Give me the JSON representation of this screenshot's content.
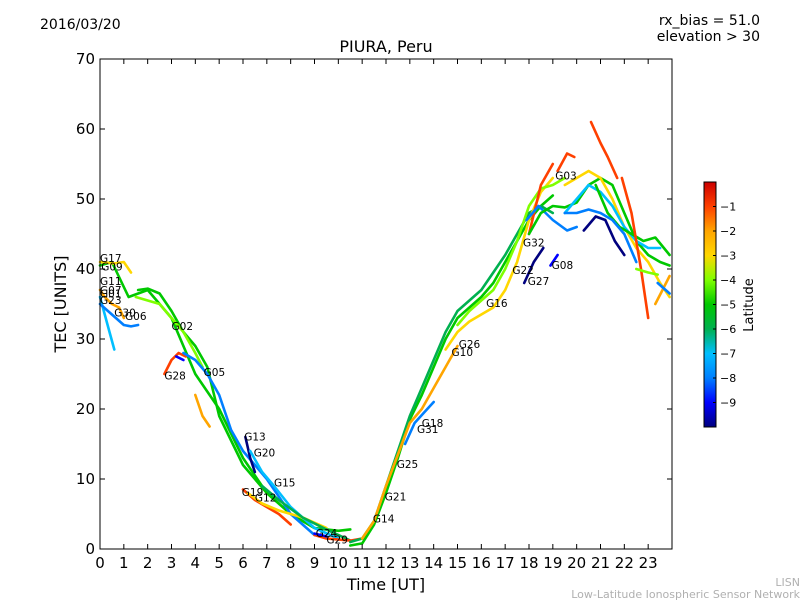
{
  "header": {
    "date": "2016/03/20",
    "title": "PIURA, Peru",
    "rx_bias": "rx_bias = 51.0",
    "elevation": "elevation > 30"
  },
  "footer": {
    "short": "LISN",
    "long": "Low-Latitude Ionospheric Sensor Network"
  },
  "colorbar": {
    "label": "Latitude",
    "ticks": [
      "-1",
      "-2",
      "-3",
      "-4",
      "-5",
      "-6",
      "-7",
      "-8",
      "-9"
    ],
    "range": [
      -10,
      0
    ],
    "colormap": [
      "#00007f",
      "#0000ff",
      "#007fff",
      "#00bfff",
      "#00b050",
      "#00c800",
      "#7fff00",
      "#ffd700",
      "#ffa500",
      "#ff4000",
      "#cc0000"
    ]
  },
  "chart_data": {
    "type": "line",
    "title": "PIURA, Peru",
    "xlabel": "Time [UT]",
    "ylabel": "TEC [UNITS]",
    "xlim": [
      0,
      24
    ],
    "ylim": [
      0,
      70
    ],
    "xticks": [
      "0",
      "1",
      "2",
      "3",
      "4",
      "5",
      "6",
      "7",
      "8",
      "9",
      "10",
      "11",
      "12",
      "13",
      "14",
      "15",
      "16",
      "17",
      "18",
      "19",
      "20",
      "21",
      "22",
      "23"
    ],
    "yticks": [
      "0",
      "10",
      "20",
      "30",
      "40",
      "50",
      "60",
      "70"
    ],
    "series": [
      {
        "lat": -5.5,
        "x": [
          0.0,
          0.5,
          1.2,
          2.0,
          3.0,
          4.0,
          5.0,
          6.0,
          7.0,
          8.0,
          9.0,
          10.0,
          10.5
        ],
        "y": [
          40.5,
          41.0,
          36.0,
          37.0,
          33.0,
          25.0,
          20.0,
          13.0,
          8.0,
          5.0,
          3.0,
          2.6,
          2.8
        ]
      },
      {
        "lat": -3.5,
        "x": [
          0.0,
          0.6,
          1.0,
          1.3
        ],
        "y": [
          41.0,
          40.8,
          41.0,
          39.5
        ]
      },
      {
        "lat": -5.2,
        "x": [
          1.6,
          2.0,
          2.5,
          3.0,
          3.5,
          4.0,
          4.5,
          5.0,
          6.0,
          7.0,
          8.0,
          9.0
        ],
        "y": [
          37.0,
          37.2,
          36.5,
          34.0,
          31.0,
          29.0,
          26.0,
          19.0,
          12.0,
          8.0,
          5.0,
          3.0
        ]
      },
      {
        "lat": -4.2,
        "x": [
          1.5,
          2.5,
          3.0,
          3.5,
          4.0,
          4.3
        ],
        "y": [
          36.0,
          35.0,
          33.0,
          31.0,
          28.0,
          26.0
        ]
      },
      {
        "lat": -7.5,
        "x": [
          0.0,
          0.4,
          0.6
        ],
        "y": [
          36.0,
          31.0,
          28.5
        ]
      },
      {
        "lat": -1.8,
        "x": [
          0.0,
          0.2,
          0.5,
          0.8,
          1.0
        ],
        "y": [
          37.0,
          36.0,
          35.0,
          34.5,
          33.0
        ]
      },
      {
        "lat": -8.5,
        "x": [
          0.0,
          0.5,
          1.0,
          1.3,
          1.6
        ],
        "y": [
          35.0,
          33.5,
          32.0,
          31.8,
          32.0
        ]
      },
      {
        "lat": -1.5,
        "x": [
          2.7,
          3.0,
          3.3,
          3.6
        ],
        "y": [
          25.0,
          27.0,
          28.0,
          27.5
        ]
      },
      {
        "lat": -2.0,
        "x": [
          4.0,
          4.3,
          4.6
        ],
        "y": [
          22.0,
          19.0,
          17.5
        ]
      },
      {
        "lat": -9.2,
        "x": [
          3.2,
          3.5
        ],
        "y": [
          27.5,
          27.0
        ]
      },
      {
        "lat": -8.2,
        "x": [
          3.5,
          4.0,
          4.5,
          5.0,
          5.5,
          6.0,
          6.5,
          7.0,
          8.0,
          9.0
        ],
        "y": [
          28.0,
          27.0,
          25.0,
          22.0,
          17.0,
          14.0,
          12.0,
          10.0,
          5.0,
          2.0
        ]
      },
      {
        "lat": -9.6,
        "x": [
          6.1,
          6.3,
          6.5
        ],
        "y": [
          16.0,
          13.0,
          11.0
        ]
      },
      {
        "lat": -7.2,
        "x": [
          6.3,
          6.8,
          7.3,
          8.0,
          9.0,
          10.0
        ],
        "y": [
          14.0,
          11.0,
          9.0,
          6.0,
          3.0,
          1.5
        ]
      },
      {
        "lat": -1.5,
        "x": [
          6.0,
          6.5,
          7.0,
          7.5,
          8.0
        ],
        "y": [
          8.5,
          7.0,
          6.0,
          5.0,
          3.5
        ]
      },
      {
        "lat": -3.5,
        "x": [
          6.2,
          6.8,
          7.5,
          8.5,
          9.5
        ],
        "y": [
          8.0,
          6.5,
          5.5,
          4.5,
          3.0
        ]
      },
      {
        "lat": -6.2,
        "x": [
          6.8,
          7.5,
          8.5,
          9.5,
          10.5
        ],
        "y": [
          9.0,
          7.0,
          4.5,
          2.8,
          1.2
        ]
      },
      {
        "lat": -1.5,
        "x": [
          9.0,
          9.5,
          10.5,
          11.0
        ],
        "y": [
          2.0,
          1.5,
          1.2,
          1.5
        ]
      },
      {
        "lat": -9.5,
        "x": [
          9.0,
          9.5
        ],
        "y": [
          2.2,
          1.8
        ]
      },
      {
        "lat": -5.3,
        "x": [
          10.5,
          11.0,
          11.5,
          12.0,
          12.5,
          13.0,
          13.5,
          14.0,
          14.5,
          15.0,
          15.5,
          16.0,
          16.5,
          17.0,
          17.5,
          18.0,
          18.5,
          19.0
        ],
        "y": [
          0.5,
          0.8,
          3.5,
          8.0,
          13.0,
          18.5,
          22.0,
          26.0,
          30.0,
          33.0,
          34.5,
          36.0,
          38.0,
          41.0,
          44.0,
          47.0,
          49.0,
          50.5
        ]
      },
      {
        "lat": -6.2,
        "x": [
          10.5,
          11.0,
          11.5,
          12.0,
          12.5,
          13.0,
          13.5,
          14.0,
          14.5,
          15.0,
          15.5,
          16.0,
          16.5,
          17.0,
          17.5,
          18.0,
          18.5,
          19.0
        ],
        "y": [
          1.0,
          1.5,
          4.0,
          9.0,
          14.0,
          19.0,
          23.0,
          27.0,
          31.0,
          34.0,
          35.5,
          37.0,
          39.5,
          42.0,
          45.0,
          48.0,
          49.0,
          48.0
        ]
      },
      {
        "lat": -2.0,
        "x": [
          11.0,
          11.5,
          12.0,
          12.5,
          13.0,
          13.5,
          14.0,
          14.5,
          15.0
        ],
        "y": [
          1.5,
          4.0,
          9.0,
          13.5,
          18.0,
          20.0,
          23.0,
          26.0,
          29.0
        ]
      },
      {
        "lat": -8.5,
        "x": [
          12.8,
          13.2,
          13.6,
          14.0
        ],
        "y": [
          15.0,
          18.0,
          19.5,
          21.0
        ]
      },
      {
        "lat": -3.5,
        "x": [
          14.5,
          15.0,
          15.5,
          16.0,
          16.5,
          17.0,
          17.5,
          18.0,
          18.5,
          19.0
        ],
        "y": [
          28.5,
          31.0,
          32.5,
          33.5,
          34.5,
          37.0,
          41.0,
          47.0,
          51.0,
          53.0
        ]
      },
      {
        "lat": -4.5,
        "x": [
          15.0,
          15.5,
          16.0,
          16.5,
          17.0,
          17.5,
          18.0,
          18.5,
          19.0,
          19.5
        ],
        "y": [
          32.0,
          34.0,
          35.5,
          37.0,
          40.0,
          44.0,
          49.0,
          51.5,
          52.0,
          53.0
        ]
      },
      {
        "lat": -1.0,
        "x": [
          18.0,
          18.5,
          19.0
        ],
        "y": [
          45.0,
          52.0,
          55.0
        ]
      },
      {
        "lat": -1.2,
        "x": [
          19.2,
          19.6,
          19.9
        ],
        "y": [
          54.0,
          56.5,
          56.0
        ]
      },
      {
        "lat": -9.6,
        "x": [
          17.8,
          18.2,
          18.6
        ],
        "y": [
          38.0,
          41.0,
          43.0
        ]
      },
      {
        "lat": -9.2,
        "x": [
          18.9,
          19.2
        ],
        "y": [
          40.5,
          42.0
        ]
      },
      {
        "lat": -8.5,
        "x": [
          17.9,
          18.4,
          19.0,
          19.6,
          20.0
        ],
        "y": [
          47.0,
          49.0,
          47.0,
          45.5,
          46.0
        ]
      },
      {
        "lat": -5.5,
        "x": [
          18.0,
          18.5,
          19.0,
          19.5,
          20.0,
          20.5,
          21.0,
          21.5,
          22.0,
          22.5,
          23.0,
          23.5,
          23.9
        ],
        "y": [
          45.0,
          48.0,
          49.0,
          48.8,
          49.5,
          52.0,
          53.0,
          52.0,
          48.0,
          44.0,
          42.0,
          41.0,
          40.5
        ]
      },
      {
        "lat": -3.2,
        "x": [
          19.5,
          20.0,
          20.5,
          21.0,
          21.5,
          22.0,
          22.5,
          23.0,
          23.5,
          23.9
        ],
        "y": [
          52.0,
          53.0,
          54.0,
          53.0,
          50.0,
          46.0,
          43.0,
          41.0,
          38.0,
          36.0
        ]
      },
      {
        "lat": -6.8,
        "x": [
          19.5,
          20.0,
          20.5,
          21.0,
          21.5,
          22.0,
          22.5,
          23.0,
          23.5
        ],
        "y": [
          48.0,
          50.0,
          52.0,
          51.0,
          49.0,
          46.0,
          44.0,
          43.0,
          43.0
        ]
      },
      {
        "lat": -4.8,
        "x": [
          20.8,
          21.3,
          21.8,
          22.3,
          22.8,
          23.3,
          23.9
        ],
        "y": [
          52.0,
          48.0,
          46.0,
          45.0,
          44.0,
          44.5,
          42.0
        ]
      },
      {
        "lat": -8.5,
        "x": [
          19.5,
          20.0,
          20.5,
          21.0,
          21.5,
          22.0,
          22.5
        ],
        "y": [
          48.0,
          48.0,
          48.5,
          48.0,
          47.0,
          45.0,
          41.0
        ]
      },
      {
        "lat": -9.6,
        "x": [
          20.3,
          20.8,
          21.2,
          21.6,
          22.0
        ],
        "y": [
          45.5,
          47.5,
          47.0,
          44.0,
          42.0
        ]
      },
      {
        "lat": -1.0,
        "x": [
          20.6,
          21.0,
          21.3,
          21.7
        ],
        "y": [
          61.0,
          58.0,
          56.0,
          53.0
        ]
      },
      {
        "lat": -1.5,
        "x": [
          21.9,
          22.3,
          22.7,
          23.0
        ],
        "y": [
          53.0,
          48.0,
          40.0,
          33.0
        ]
      },
      {
        "lat": -2.2,
        "x": [
          23.3,
          23.6,
          23.9
        ],
        "y": [
          35.0,
          37.0,
          39.0
        ]
      },
      {
        "lat": -7.8,
        "x": [
          23.4,
          23.9
        ],
        "y": [
          38.0,
          36.5
        ]
      },
      {
        "lat": -3.8,
        "x": [
          22.5,
          23.0,
          23.4
        ],
        "y": [
          40.0,
          39.5,
          39.2
        ]
      }
    ],
    "annotations": [
      {
        "text": "G17",
        "x": 0.0,
        "y": 41.0
      },
      {
        "text": "G09",
        "x": 0.05,
        "y": 39.8
      },
      {
        "text": "G11",
        "x": 0.0,
        "y": 37.7
      },
      {
        "text": "G07",
        "x": 0.0,
        "y": 36.4
      },
      {
        "text": "G01",
        "x": 0.0,
        "y": 35.9
      },
      {
        "text": "G23",
        "x": 0.0,
        "y": 35.0
      },
      {
        "text": "G30",
        "x": 0.6,
        "y": 33.2
      },
      {
        "text": "G06",
        "x": 1.05,
        "y": 32.7
      },
      {
        "text": "G02",
        "x": 3.0,
        "y": 31.3
      },
      {
        "text": "G05",
        "x": 4.35,
        "y": 24.7
      },
      {
        "text": "G28",
        "x": 2.7,
        "y": 24.2
      },
      {
        "text": "G13",
        "x": 6.05,
        "y": 15.5
      },
      {
        "text": "G20",
        "x": 6.45,
        "y": 13.2
      },
      {
        "text": "G15",
        "x": 7.3,
        "y": 8.9
      },
      {
        "text": "G19",
        "x": 5.95,
        "y": 7.6
      },
      {
        "text": "G12",
        "x": 6.5,
        "y": 6.8
      },
      {
        "text": "G24",
        "x": 9.05,
        "y": 1.7
      },
      {
        "text": "G29",
        "x": 9.5,
        "y": 0.8
      },
      {
        "text": "G14",
        "x": 11.45,
        "y": 3.8
      },
      {
        "text": "G21",
        "x": 11.95,
        "y": 6.9
      },
      {
        "text": "G25",
        "x": 12.45,
        "y": 11.6
      },
      {
        "text": "G31",
        "x": 13.3,
        "y": 16.6
      },
      {
        "text": "G18",
        "x": 13.5,
        "y": 17.4
      },
      {
        "text": "G10",
        "x": 14.75,
        "y": 27.6
      },
      {
        "text": "G26",
        "x": 15.05,
        "y": 28.7
      },
      {
        "text": "G16",
        "x": 16.2,
        "y": 34.6
      },
      {
        "text": "G27",
        "x": 17.95,
        "y": 37.7
      },
      {
        "text": "G22",
        "x": 17.3,
        "y": 39.3
      },
      {
        "text": "G08",
        "x": 18.95,
        "y": 40.0
      },
      {
        "text": "G32",
        "x": 17.75,
        "y": 43.2
      },
      {
        "text": "G03",
        "x": 19.1,
        "y": 52.8
      }
    ]
  }
}
